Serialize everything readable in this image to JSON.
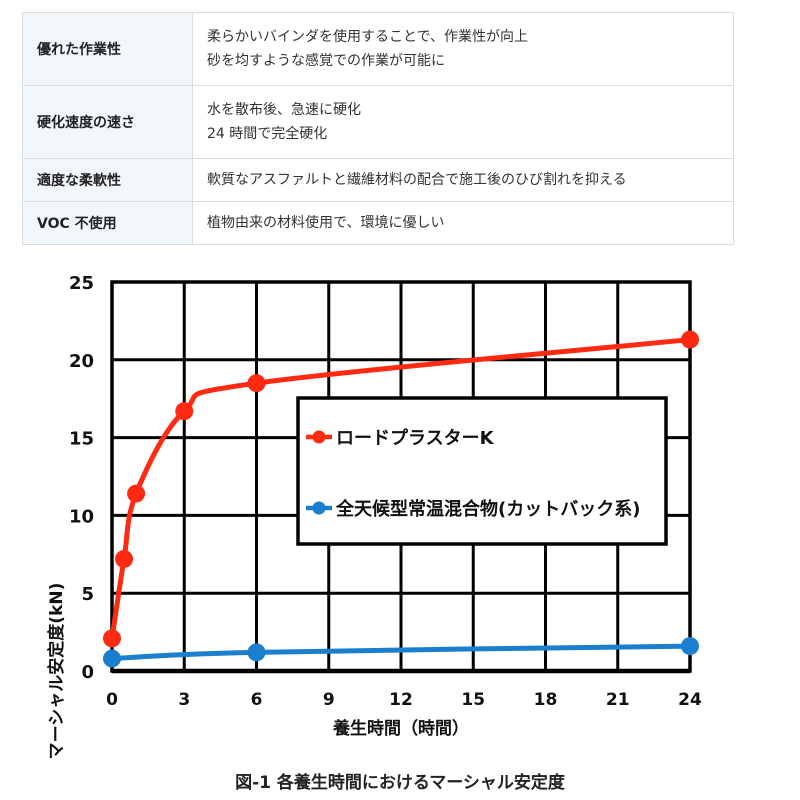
{
  "table": {
    "rows": [
      {
        "label": "優れた作業性",
        "lines": [
          "柔らかいバインダを使用することで、作業性が向上",
          "砂を均すような感覚での作業が可能に"
        ]
      },
      {
        "label": "硬化速度の速さ",
        "lines": [
          "水を散布後、急速に硬化",
          "24 時間で完全硬化"
        ]
      },
      {
        "label": "適度な柔軟性",
        "lines": [
          "軟質なアスファルトと繊維材料の配合で施工後のひび割れを抑える"
        ]
      },
      {
        "label": "VOC 不使用",
        "lines": [
          "植物由来の材料使用で、環境に優しい"
        ]
      }
    ]
  },
  "chart_data": {
    "type": "line",
    "title": "",
    "xlabel": "養生時間（時間）",
    "ylabel": "マーシャル安定度(kN)",
    "xlim": [
      0,
      24
    ],
    "ylim": [
      0,
      25
    ],
    "xticks": [
      0,
      3,
      6,
      9,
      12,
      15,
      18,
      21,
      24
    ],
    "yticks": [
      0,
      5,
      10,
      15,
      20,
      25
    ],
    "grid": true,
    "legend_position": "center-right inside",
    "series": [
      {
        "name": "ロードプラスターK",
        "color": "#ff2a12",
        "x": [
          0,
          0.5,
          1,
          3,
          6,
          24
        ],
        "values": [
          2.1,
          7.2,
          11.4,
          16.7,
          18.5,
          21.3
        ]
      },
      {
        "name": "全天候型常温混合物(カットバック系)",
        "color": "#1a7fcf",
        "x": [
          0,
          6,
          24
        ],
        "values": [
          0.8,
          1.2,
          1.6
        ]
      }
    ]
  },
  "caption": "図-1  各養生時間におけるマーシャル安定度"
}
